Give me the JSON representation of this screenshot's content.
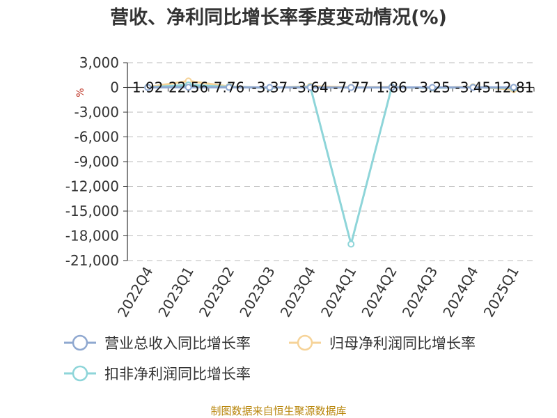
{
  "chart_data": {
    "type": "line",
    "title": "营收、净利同比增长率季度变动情况(%)",
    "ylabel": "%",
    "ylim": [
      -21000,
      3000
    ],
    "yticks": [
      3000,
      0,
      -3000,
      -6000,
      -9000,
      -12000,
      -15000,
      -18000,
      -21000
    ],
    "ytick_labels": [
      "3,000",
      "0",
      "-3,000",
      "-6,000",
      "-9,000",
      "-12,000",
      "-15,000",
      "-18,000",
      "-21,000"
    ],
    "categories": [
      "2022Q4",
      "2023Q1",
      "2023Q2",
      "2023Q3",
      "2023Q4",
      "2024Q1",
      "2024Q2",
      "2024Q3",
      "2024Q4",
      "2025Q1"
    ],
    "grid": true,
    "legend_position": "bottom-left",
    "series": [
      {
        "name": "营业总收入同比增长率",
        "color": "#8fa8d0",
        "values": [
          1.92,
          22.56,
          7.76,
          -3.37,
          -3.64,
          -7.77,
          1.86,
          -3.25,
          -3.45,
          12.81
        ],
        "labels": [
          "1.92",
          "22.56",
          "7.76",
          "-3.37",
          "-3.64",
          "-7.77",
          "1.86",
          "-3.25",
          "-3.45",
          "12.81"
        ]
      },
      {
        "name": "归母净利润同比增长率",
        "color": "#f6d398",
        "values": [
          30,
          780,
          120,
          -60,
          150,
          20,
          40,
          -60,
          80,
          -250
        ]
      },
      {
        "name": "扣非净利润同比增长率",
        "color": "#8ed5d9",
        "values": [
          20,
          300,
          70,
          -40,
          60,
          -19000,
          30,
          -50,
          20,
          -80
        ]
      }
    ]
  },
  "source_text": "制图数据来自恒生聚源数据库"
}
